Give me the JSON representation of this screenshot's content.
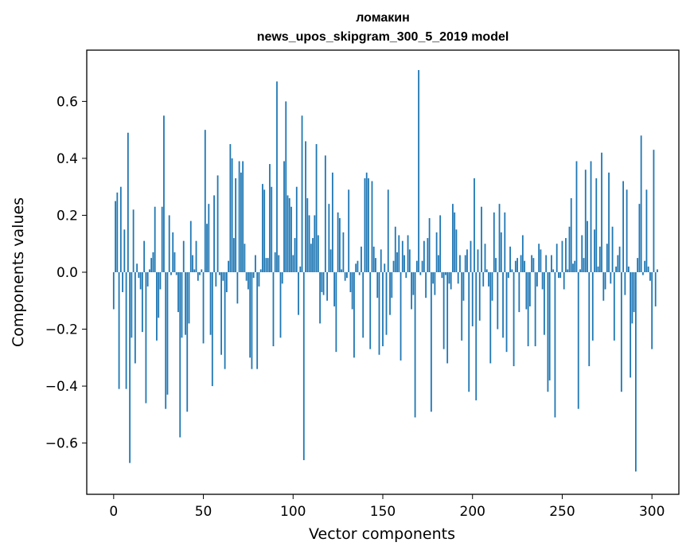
{
  "chart_data": {
    "type": "bar",
    "title": "ломакин",
    "subtitle": "news_upos_skipgram_300_5_2019 model",
    "xlabel": "Vector components",
    "ylabel": "Components values",
    "xlim": [
      -15,
      315
    ],
    "ylim": [
      -0.78,
      0.78
    ],
    "xticks": [
      0,
      50,
      100,
      150,
      200,
      250,
      300
    ],
    "yticks": [
      -0.6,
      -0.4,
      -0.2,
      0.0,
      0.2,
      0.4,
      0.6
    ],
    "ytick_labels": [
      "−0.6",
      "−0.4",
      "−0.2",
      "0.0",
      "0.2",
      "0.4",
      "0.6"
    ],
    "bar_color": "#1f77b4",
    "grid": false,
    "legend": "none",
    "values": [
      -0.13,
      0.25,
      0.28,
      -0.41,
      0.3,
      -0.07,
      0.15,
      -0.41,
      0.49,
      -0.67,
      -0.23,
      0.22,
      -0.32,
      0.03,
      -0.02,
      -0.06,
      -0.21,
      0.11,
      -0.46,
      -0.05,
      0.01,
      0.05,
      0.07,
      0.23,
      -0.24,
      -0.16,
      -0.06,
      0.23,
      0.55,
      -0.48,
      -0.43,
      0.2,
      -0.01,
      0.14,
      0.07,
      -0.01,
      -0.14,
      -0.58,
      -0.23,
      0.11,
      -0.22,
      -0.49,
      -0.18,
      0.18,
      0.06,
      0.01,
      0.11,
      -0.03,
      -0.01,
      0.01,
      -0.25,
      0.5,
      0.17,
      0.24,
      -0.22,
      -0.4,
      0.27,
      -0.05,
      0.34,
      -0.01,
      -0.29,
      -0.03,
      -0.34,
      -0.07,
      0.04,
      0.45,
      0.4,
      0.12,
      0.33,
      -0.11,
      0.39,
      0.35,
      0.39,
      0.1,
      -0.03,
      -0.06,
      -0.3,
      -0.34,
      -0.02,
      0.06,
      -0.34,
      -0.05,
      0.01,
      0.31,
      0.29,
      0.05,
      0.05,
      0.38,
      0.3,
      -0.26,
      0.07,
      0.67,
      0.06,
      -0.23,
      -0.04,
      0.39,
      0.6,
      0.27,
      0.26,
      0.23,
      0.06,
      0.12,
      0.3,
      -0.15,
      0.02,
      0.55,
      -0.66,
      0.46,
      0.26,
      0.2,
      0.1,
      0.12,
      0.2,
      0.45,
      0.13,
      -0.18,
      -0.07,
      -0.08,
      0.41,
      -0.1,
      0.24,
      0.08,
      0.35,
      -0.12,
      -0.28,
      0.21,
      0.19,
      0.01,
      0.14,
      -0.03,
      -0.02,
      0.29,
      -0.07,
      -0.13,
      -0.3,
      0.03,
      0.04,
      -0.01,
      0.09,
      -0.23,
      0.33,
      0.35,
      0.33,
      -0.27,
      0.32,
      0.09,
      0.05,
      -0.09,
      -0.29,
      0.08,
      -0.26,
      0.03,
      -0.22,
      0.29,
      -0.15,
      -0.09,
      0.04,
      0.16,
      0.07,
      0.13,
      -0.31,
      0.11,
      0.06,
      -0.02,
      0.13,
      0.08,
      -0.13,
      -0.08,
      -0.51,
      0.04,
      0.71,
      -0.01,
      0.04,
      0.11,
      -0.09,
      0.12,
      0.19,
      -0.49,
      -0.04,
      -0.08,
      0.14,
      0.06,
      0.2,
      -0.02,
      -0.27,
      -0.01,
      -0.32,
      -0.04,
      -0.06,
      0.24,
      0.21,
      0.15,
      -0.04,
      0.06,
      -0.24,
      -0.1,
      0.06,
      0.08,
      -0.42,
      0.11,
      -0.19,
      0.33,
      -0.45,
      0.08,
      -0.17,
      0.23,
      -0.05,
      0.1,
      0.01,
      -0.05,
      -0.32,
      -0.1,
      0.21,
      0.05,
      -0.2,
      0.24,
      0.14,
      -0.23,
      0.21,
      -0.28,
      -0.02,
      0.09,
      0.01,
      -0.33,
      0.04,
      0.05,
      -0.14,
      0.06,
      0.13,
      0.04,
      -0.13,
      -0.26,
      -0.12,
      0.06,
      0.05,
      -0.26,
      -0.05,
      0.1,
      0.08,
      -0.06,
      -0.22,
      0.06,
      -0.42,
      -0.38,
      0.06,
      0.01,
      -0.51,
      0.1,
      -0.02,
      -0.02,
      0.11,
      -0.06,
      0.12,
      0.01,
      0.16,
      0.26,
      0.03,
      0.04,
      0.39,
      -0.48,
      0.01,
      0.13,
      0.05,
      0.36,
      0.18,
      -0.33,
      0.39,
      -0.24,
      0.15,
      0.33,
      0.02,
      0.09,
      0.42,
      -0.1,
      -0.06,
      0.1,
      0.35,
      -0.04,
      0.16,
      -0.24,
      0.02,
      0.06,
      0.09,
      -0.42,
      0.32,
      -0.08,
      0.29,
      0.02,
      -0.37,
      -0.18,
      -0.14,
      -0.7,
      0.05,
      0.24,
      0.48,
      -0.01,
      0.04,
      0.29,
      0.02,
      -0.03,
      -0.27,
      0.43,
      -0.12,
      0.01
    ]
  }
}
